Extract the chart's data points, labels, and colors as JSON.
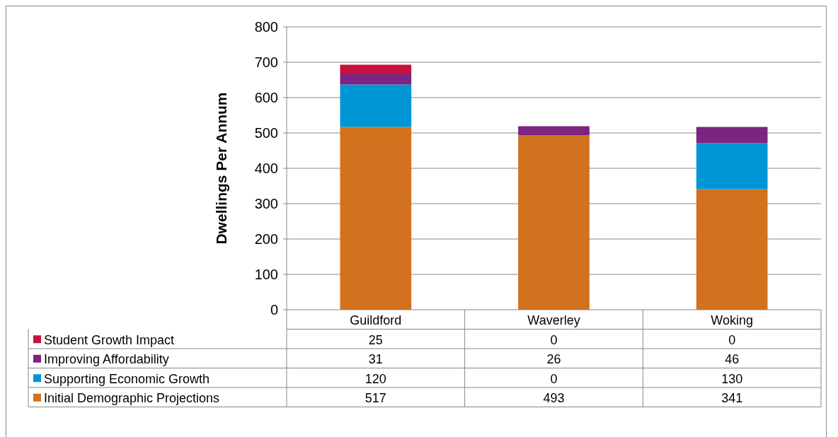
{
  "chart_data": {
    "type": "bar",
    "stacked": true,
    "ylabel": "Dwellings Per Annum",
    "categories": [
      "Guildford",
      "Waverley",
      "Woking"
    ],
    "series": [
      {
        "name": "Initial Demographic Projections",
        "color": "#d2711e",
        "values": [
          517,
          493,
          341
        ]
      },
      {
        "name": "Supporting Economic Growth",
        "color": "#0096d6",
        "values": [
          120,
          0,
          130
        ]
      },
      {
        "name": "Improving Affordability",
        "color": "#7b2481",
        "values": [
          31,
          26,
          46
        ]
      },
      {
        "name": "Student Growth Impact",
        "color": "#c8103e",
        "values": [
          25,
          0,
          0
        ]
      }
    ],
    "ylim": [
      0,
      800
    ],
    "yticks": [
      0,
      100,
      200,
      300,
      400,
      500,
      600,
      700,
      800
    ],
    "grid": "y",
    "legend": "bottom",
    "data_labels": true
  }
}
